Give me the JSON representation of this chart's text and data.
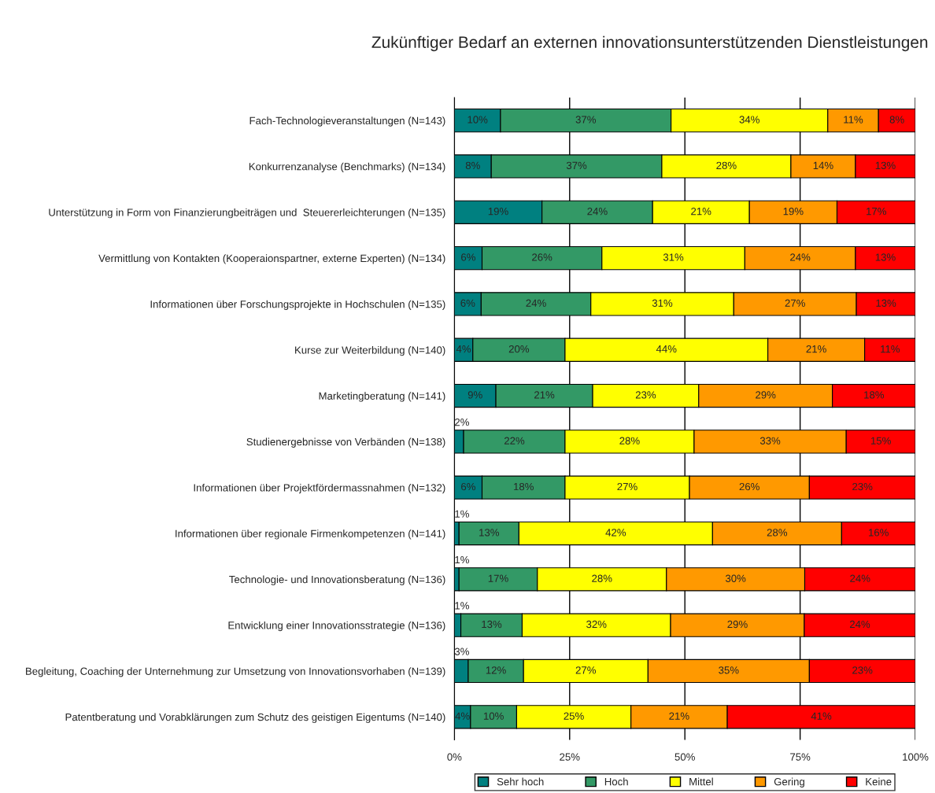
{
  "chart_data": {
    "type": "bar",
    "orientation": "horizontal",
    "stacked": true,
    "title": "Zukünftiger Bedarf an externen innovationsunterstützenden Dienstleistungen",
    "categories": [
      "Fach-Technologieveranstaltungen (N=143)",
      "Konkurrenzanalyse (Benchmarks) (N=134)",
      "Unterstützung in Form von Finanzierungbeiträgen und  Steuererleichterungen (N=135)",
      "Vermittlung von Kontakten (Kooperaionspartner, externe Experten) (N=134)",
      "Informationen über Forschungsprojekte in Hochschulen (N=135)",
      "Kurse zur Weiterbildung (N=140)",
      "Marketingberatung (N=141)",
      "Studienergebnisse von Verbänden (N=138)",
      "Informationen über Projektfördermassnahmen (N=132)",
      "Informationen über regionale Firmenkompetenzen (N=141)",
      "Technologie- und Innovationsberatung (N=136)",
      "Entwicklung einer Innovationsstrategie (N=136)",
      "Begleitung, Coaching der Unternehmung zur Umsetzung von Innovationsvorhaben (N=139)",
      "Patentberatung und Vorabklärungen zum Schutz des geistigen Eigentums (N=140)"
    ],
    "series": [
      {
        "name": "Sehr hoch",
        "color": "#008080",
        "values": [
          10,
          8,
          19,
          6,
          5.8,
          4,
          9,
          2,
          6,
          1,
          1,
          1.4,
          3,
          3.5
        ],
        "value_labels": [
          "10%",
          "8%",
          "19%",
          "6%",
          "6%",
          "4%",
          "9%",
          "2%",
          "6%",
          "1%",
          "1%",
          "1%",
          "3%",
          "4%"
        ]
      },
      {
        "name": "Hoch",
        "color": "#339966",
        "values": [
          37,
          37,
          24,
          26,
          23.8,
          20,
          21,
          22,
          18,
          13,
          17,
          13.3,
          12,
          10
        ],
        "value_labels": [
          "37%",
          "37%",
          "24%",
          "26%",
          "24%",
          "20%",
          "21%",
          "22%",
          "18%",
          "13%",
          "17%",
          "13%",
          "12%",
          "10%"
        ]
      },
      {
        "name": "Mittel",
        "color": "#ffff00",
        "values": [
          34,
          28,
          21,
          31,
          31,
          44,
          23,
          28,
          27,
          42,
          28,
          32.2,
          27,
          24.8
        ],
        "value_labels": [
          "34%",
          "28%",
          "21%",
          "31%",
          "31%",
          "44%",
          "23%",
          "28%",
          "27%",
          "42%",
          "28%",
          "32%",
          "27%",
          "25%"
        ]
      },
      {
        "name": "Gering",
        "color": "#ff9900",
        "values": [
          11,
          14,
          19,
          24,
          26.6,
          21,
          29,
          33,
          26,
          28,
          30,
          29,
          35,
          20.9
        ],
        "value_labels": [
          "11%",
          "14%",
          "19%",
          "24%",
          "27%",
          "21%",
          "29%",
          "33%",
          "26%",
          "28%",
          "30%",
          "29%",
          "35%",
          "21%"
        ]
      },
      {
        "name": "Keine",
        "color": "#ff0000",
        "values": [
          8,
          13,
          17,
          13,
          12.8,
          11,
          18,
          15,
          23,
          16,
          24,
          24.1,
          23,
          40.8
        ],
        "value_labels": [
          "8%",
          "13%",
          "17%",
          "13%",
          "13%",
          "11%",
          "18%",
          "15%",
          "23%",
          "16%",
          "24%",
          "24%",
          "23%",
          "41%"
        ]
      }
    ],
    "xlim": [
      0,
      100
    ],
    "xticks": [
      {
        "value": 0,
        "label": "0%"
      },
      {
        "value": 25,
        "label": "25%"
      },
      {
        "value": 50,
        "label": "50%"
      },
      {
        "value": 75,
        "label": "75%"
      },
      {
        "value": 100,
        "label": "100%"
      }
    ],
    "grid": "x",
    "legend": "bottom"
  }
}
